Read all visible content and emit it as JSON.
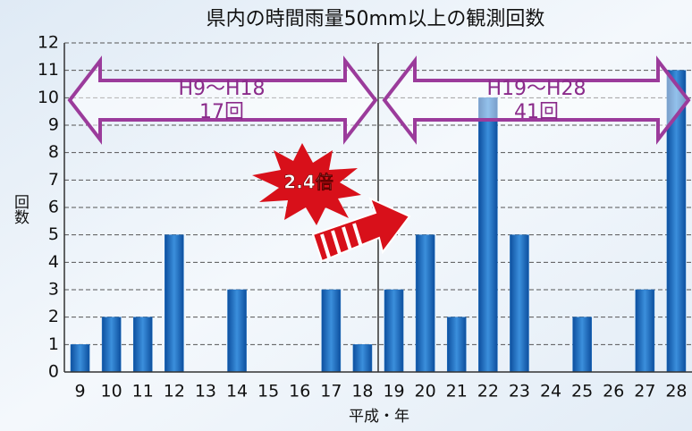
{
  "chart_data": {
    "type": "bar",
    "title": "県内の時間雨量50mm以上の観測回数",
    "x_label": "平成・年",
    "y_label": "回数",
    "categories": [
      "9",
      "10",
      "11",
      "12",
      "13",
      "14",
      "15",
      "16",
      "17",
      "18",
      "19",
      "20",
      "21",
      "22",
      "23",
      "24",
      "25",
      "26",
      "27",
      "28"
    ],
    "values": [
      1,
      2,
      2,
      5,
      0,
      3,
      0,
      0,
      3,
      1,
      3,
      5,
      2,
      10,
      5,
      0,
      2,
      0,
      3,
      11
    ],
    "color": "#1e6fc0",
    "ylim": [
      0,
      12
    ],
    "yticks": [
      0,
      1,
      2,
      3,
      4,
      5,
      6,
      7,
      8,
      9,
      10,
      11,
      12
    ],
    "grid": true,
    "annotations": [
      "H9〜H18",
      "17回",
      "H19〜H28",
      "41回",
      "2.4倍"
    ]
  }
}
